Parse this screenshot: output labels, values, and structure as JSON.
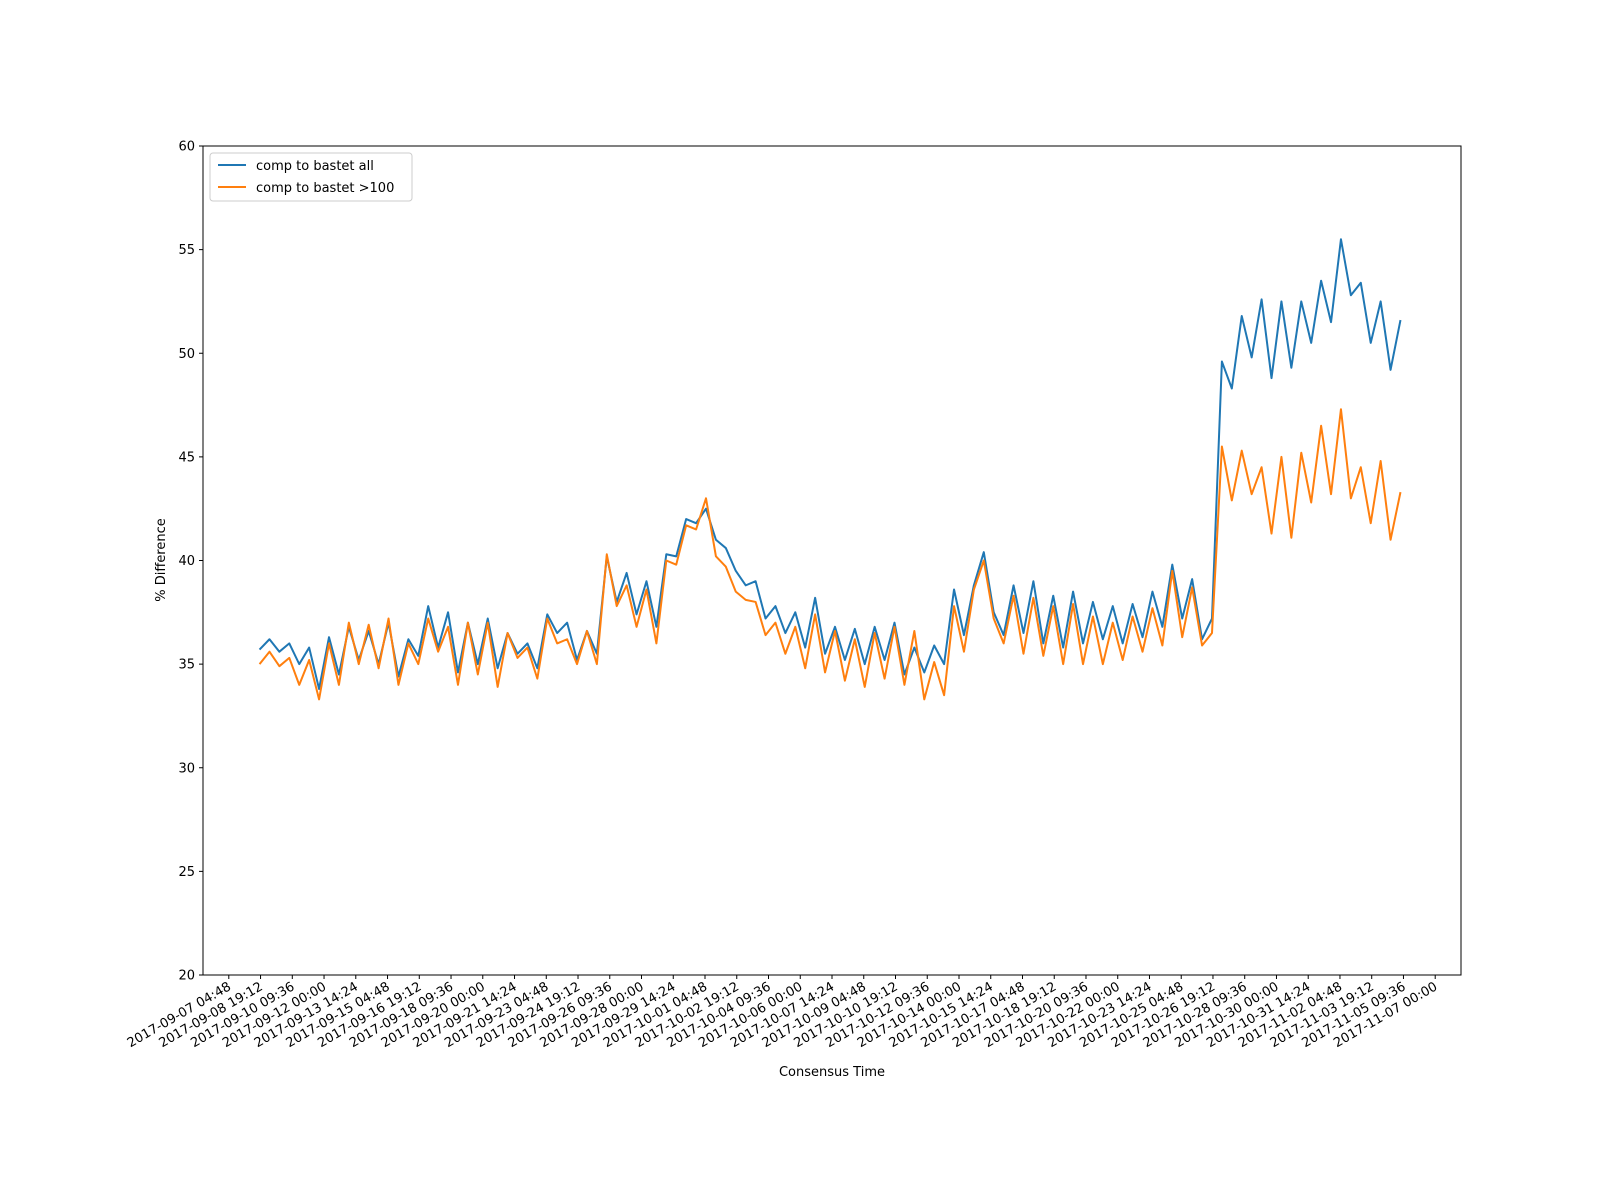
{
  "chart_data": {
    "type": "line",
    "xlabel": "Consensus Time",
    "ylabel": "% Difference",
    "legend": "upper left",
    "grid": false,
    "x": [
      "2017-09-08 18:00",
      "2017-09-09 06:00",
      "2017-09-09 18:00",
      "2017-09-10 06:00",
      "2017-09-10 18:00",
      "2017-09-11 06:00",
      "2017-09-11 18:00",
      "2017-09-12 06:00",
      "2017-09-12 18:00",
      "2017-09-13 06:00",
      "2017-09-13 18:00",
      "2017-09-14 06:00",
      "2017-09-14 18:00",
      "2017-09-15 06:00",
      "2017-09-15 18:00",
      "2017-09-16 06:00",
      "2017-09-16 18:00",
      "2017-09-17 06:00",
      "2017-09-17 18:00",
      "2017-09-18 06:00",
      "2017-09-18 18:00",
      "2017-09-19 06:00",
      "2017-09-19 18:00",
      "2017-09-20 06:00",
      "2017-09-20 18:00",
      "2017-09-21 06:00",
      "2017-09-21 18:00",
      "2017-09-22 06:00",
      "2017-09-22 18:00",
      "2017-09-23 06:00",
      "2017-09-23 18:00",
      "2017-09-24 06:00",
      "2017-09-24 18:00",
      "2017-09-25 06:00",
      "2017-09-25 18:00",
      "2017-09-26 06:00",
      "2017-09-26 18:00",
      "2017-09-27 06:00",
      "2017-09-27 18:00",
      "2017-09-28 06:00",
      "2017-09-28 18:00",
      "2017-09-29 06:00",
      "2017-09-29 18:00",
      "2017-09-30 06:00",
      "2017-09-30 18:00",
      "2017-10-01 06:00",
      "2017-10-01 18:00",
      "2017-10-02 06:00",
      "2017-10-02 18:00",
      "2017-10-03 06:00",
      "2017-10-03 18:00",
      "2017-10-04 06:00",
      "2017-10-04 18:00",
      "2017-10-05 06:00",
      "2017-10-05 18:00",
      "2017-10-06 06:00",
      "2017-10-06 18:00",
      "2017-10-07 06:00",
      "2017-10-07 18:00",
      "2017-10-08 06:00",
      "2017-10-08 18:00",
      "2017-10-09 06:00",
      "2017-10-09 18:00",
      "2017-10-10 06:00",
      "2017-10-10 18:00",
      "2017-10-11 06:00",
      "2017-10-11 18:00",
      "2017-10-12 06:00",
      "2017-10-12 18:00",
      "2017-10-13 06:00",
      "2017-10-13 18:00",
      "2017-10-14 06:00",
      "2017-10-14 18:00",
      "2017-10-15 06:00",
      "2017-10-15 18:00",
      "2017-10-16 06:00",
      "2017-10-16 18:00",
      "2017-10-17 06:00",
      "2017-10-17 18:00",
      "2017-10-18 06:00",
      "2017-10-18 18:00",
      "2017-10-19 06:00",
      "2017-10-19 18:00",
      "2017-10-20 06:00",
      "2017-10-20 18:00",
      "2017-10-21 06:00",
      "2017-10-21 18:00",
      "2017-10-22 06:00",
      "2017-10-22 18:00",
      "2017-10-23 06:00",
      "2017-10-23 18:00",
      "2017-10-24 06:00",
      "2017-10-24 18:00",
      "2017-10-25 06:00",
      "2017-10-25 18:00",
      "2017-10-26 06:00",
      "2017-10-26 18:00",
      "2017-10-27 06:00",
      "2017-10-27 18:00",
      "2017-10-28 06:00",
      "2017-10-28 18:00",
      "2017-10-29 06:00",
      "2017-10-29 18:00",
      "2017-10-30 06:00",
      "2017-10-30 18:00",
      "2017-10-31 06:00",
      "2017-10-31 18:00",
      "2017-11-01 06:00",
      "2017-11-01 18:00",
      "2017-11-02 06:00",
      "2017-11-02 18:00",
      "2017-11-03 06:00",
      "2017-11-03 18:00",
      "2017-11-04 06:00",
      "2017-11-04 18:00",
      "2017-11-05 06:00"
    ],
    "series": [
      {
        "name": "comp to bastet all",
        "color": "#1f77b4",
        "values": [
          35.7,
          36.2,
          35.6,
          36.0,
          35.0,
          35.8,
          33.8,
          36.3,
          34.5,
          36.8,
          35.2,
          36.6,
          35.0,
          37.0,
          34.4,
          36.2,
          35.4,
          37.8,
          35.8,
          37.5,
          34.6,
          37.0,
          35.0,
          37.2,
          34.8,
          36.5,
          35.5,
          36.0,
          34.8,
          37.4,
          36.5,
          37.0,
          35.2,
          36.6,
          35.5,
          40.2,
          38.0,
          39.4,
          37.4,
          39.0,
          36.8,
          40.3,
          40.2,
          42.0,
          41.8,
          42.5,
          41.0,
          40.6,
          39.5,
          38.8,
          39.0,
          37.2,
          37.8,
          36.5,
          37.5,
          35.8,
          38.2,
          35.5,
          36.8,
          35.2,
          36.7,
          35.0,
          36.8,
          35.2,
          37.0,
          34.5,
          35.8,
          34.6,
          35.9,
          35.0,
          38.6,
          36.4,
          38.8,
          40.4,
          37.5,
          36.4,
          38.8,
          36.5,
          39.0,
          36.0,
          38.3,
          35.8,
          38.5,
          36.0,
          38.0,
          36.2,
          37.8,
          36.0,
          37.9,
          36.3,
          38.5,
          36.8,
          39.8,
          37.2,
          39.1,
          36.2,
          37.2,
          49.6,
          48.3,
          51.8,
          49.8,
          52.6,
          48.8,
          52.5,
          49.3,
          52.5,
          50.5,
          53.5,
          51.5,
          55.5,
          52.8,
          53.4,
          50.5,
          52.5,
          49.2,
          51.6
        ]
      },
      {
        "name": "comp to bastet >100",
        "color": "#ff7f0e",
        "values": [
          35.0,
          35.6,
          34.9,
          35.3,
          34.0,
          35.2,
          33.3,
          36.0,
          34.0,
          37.0,
          35.0,
          36.9,
          34.8,
          37.2,
          34.0,
          36.0,
          35.0,
          37.2,
          35.6,
          36.8,
          34.0,
          37.0,
          34.5,
          37.0,
          33.9,
          36.5,
          35.3,
          35.8,
          34.3,
          37.2,
          36.0,
          36.2,
          35.0,
          36.6,
          35.0,
          40.3,
          37.8,
          38.8,
          36.8,
          38.6,
          36.0,
          40.0,
          39.8,
          41.7,
          41.5,
          43.0,
          40.2,
          39.7,
          38.5,
          38.1,
          38.0,
          36.4,
          37.0,
          35.5,
          36.8,
          34.8,
          37.4,
          34.6,
          36.6,
          34.2,
          36.2,
          33.9,
          36.5,
          34.3,
          36.8,
          34.0,
          36.6,
          33.3,
          35.1,
          33.5,
          37.8,
          35.6,
          38.6,
          40.0,
          37.2,
          36.0,
          38.3,
          35.5,
          38.2,
          35.4,
          37.8,
          35.0,
          37.9,
          35.0,
          37.3,
          35.0,
          37.0,
          35.2,
          37.3,
          35.6,
          37.7,
          35.9,
          39.5,
          36.3,
          38.7,
          35.9,
          36.5,
          45.5,
          42.9,
          45.3,
          43.2,
          44.5,
          41.3,
          45.0,
          41.1,
          45.2,
          42.8,
          46.5,
          43.2,
          47.3,
          43.0,
          44.5,
          41.8,
          44.8,
          41.0,
          43.3
        ]
      }
    ],
    "xlim": [
      "2017-09-05 21:36",
      "2017-11-08 07:12"
    ],
    "xticks": [
      "2017-09-07 04:48",
      "2017-09-08 19:12",
      "2017-09-10 09:36",
      "2017-09-12 00:00",
      "2017-09-13 14:24",
      "2017-09-15 04:48",
      "2017-09-16 19:12",
      "2017-09-18 09:36",
      "2017-09-20 00:00",
      "2017-09-21 14:24",
      "2017-09-23 04:48",
      "2017-09-24 19:12",
      "2017-09-26 09:36",
      "2017-09-28 00:00",
      "2017-09-29 14:24",
      "2017-10-01 04:48",
      "2017-10-02 19:12",
      "2017-10-04 09:36",
      "2017-10-06 00:00",
      "2017-10-07 14:24",
      "2017-10-09 04:48",
      "2017-10-10 19:12",
      "2017-10-12 09:36",
      "2017-10-14 00:00",
      "2017-10-15 14:24",
      "2017-10-17 04:48",
      "2017-10-18 19:12",
      "2017-10-20 09:36",
      "2017-10-22 00:00",
      "2017-10-23 14:24",
      "2017-10-25 04:48",
      "2017-10-26 19:12",
      "2017-10-28 09:36",
      "2017-10-30 00:00",
      "2017-10-31 14:24",
      "2017-11-02 04:48",
      "2017-11-03 19:12",
      "2017-11-05 09:36",
      "2017-11-07 00:00"
    ],
    "ylim": [
      20,
      60
    ],
    "yticks": [
      20,
      25,
      30,
      35,
      40,
      45,
      50,
      55,
      60
    ]
  }
}
